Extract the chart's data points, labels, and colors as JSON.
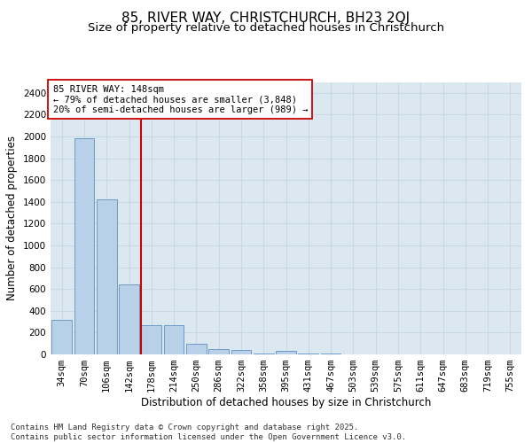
{
  "title": "85, RIVER WAY, CHRISTCHURCH, BH23 2QJ",
  "subtitle": "Size of property relative to detached houses in Christchurch",
  "xlabel": "Distribution of detached houses by size in Christchurch",
  "ylabel": "Number of detached properties",
  "categories": [
    "34sqm",
    "70sqm",
    "106sqm",
    "142sqm",
    "178sqm",
    "214sqm",
    "250sqm",
    "286sqm",
    "322sqm",
    "358sqm",
    "395sqm",
    "431sqm",
    "467sqm",
    "503sqm",
    "539sqm",
    "575sqm",
    "611sqm",
    "647sqm",
    "683sqm",
    "719sqm",
    "755sqm"
  ],
  "values": [
    320,
    1980,
    1420,
    640,
    270,
    265,
    100,
    50,
    40,
    5,
    30,
    5,
    5,
    0,
    0,
    0,
    0,
    0,
    0,
    0,
    0
  ],
  "bar_color": "#b8d0e8",
  "bar_edge_color": "#6090c0",
  "vline_x": 3.55,
  "vline_color": "#cc0000",
  "annotation_text": "85 RIVER WAY: 148sqm\n← 79% of detached houses are smaller (3,848)\n20% of semi-detached houses are larger (989) →",
  "annotation_box_color": "#ffffff",
  "annotation_box_edge": "#cc0000",
  "ylim": [
    0,
    2500
  ],
  "yticks": [
    0,
    200,
    400,
    600,
    800,
    1000,
    1200,
    1400,
    1600,
    1800,
    2000,
    2200,
    2400
  ],
  "grid_color": "#c8d8e8",
  "background_color": "#dce8f0",
  "footer": "Contains HM Land Registry data © Crown copyright and database right 2025.\nContains public sector information licensed under the Open Government Licence v3.0.",
  "title_fontsize": 11,
  "subtitle_fontsize": 9.5,
  "axis_label_fontsize": 8.5,
  "tick_fontsize": 7.5,
  "annotation_fontsize": 7.5,
  "footer_fontsize": 6.5
}
